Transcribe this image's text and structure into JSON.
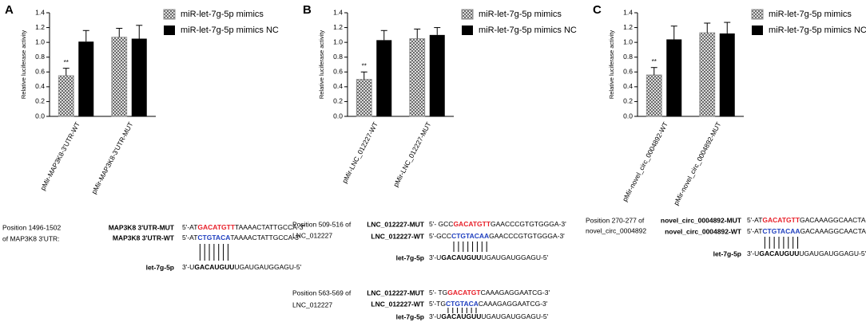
{
  "chart_data": [
    {
      "panel": "A",
      "type": "bar",
      "ylabel": "Relative luciferase activity",
      "categories": [
        "pMir-MAP3K8-3'UTR-WT",
        "pMir-MAP3K8-3'UTR-MUT"
      ],
      "series": [
        {
          "name": "miR-let-7g-5p mimics",
          "color": "#8c8c8c",
          "pattern": "hatch",
          "values": [
            0.55,
            1.07
          ],
          "errors": [
            0.1,
            0.12
          ],
          "annotations": [
            "**",
            null
          ]
        },
        {
          "name": "miR-let-7g-5p mimics NC",
          "color": "#000000",
          "values": [
            1.01,
            1.05
          ],
          "errors": [
            0.15,
            0.18
          ]
        }
      ],
      "ylim": [
        0,
        1.4
      ],
      "yticks": [
        {
          "value": 0,
          "label": "0.0"
        },
        0.2,
        0.4,
        0.6,
        0.8,
        {
          "value": 1,
          "label": "1.0"
        },
        1.2,
        1.4
      ]
    },
    {
      "panel": "B",
      "type": "bar",
      "ylabel": "Relative luciferase activity",
      "categories": [
        "pMir-LNC_012227-WT",
        "pMir-LNC_012227-MUT"
      ],
      "series": [
        {
          "name": "miR-let-7g-5p mimics",
          "color": "#8c8c8c",
          "pattern": "hatch",
          "values": [
            0.5,
            1.05
          ],
          "errors": [
            0.1,
            0.13
          ],
          "annotations": [
            "**",
            null
          ]
        },
        {
          "name": "miR-let-7g-5p mimics NC",
          "color": "#000000",
          "values": [
            1.03,
            1.1
          ],
          "errors": [
            0.13,
            0.1
          ]
        }
      ],
      "ylim": [
        0,
        1.4
      ],
      "yticks": [
        {
          "value": 0,
          "label": "0.0"
        },
        0.2,
        0.4,
        0.6,
        0.8,
        {
          "value": 1,
          "label": "1.0"
        },
        1.2,
        1.4
      ]
    },
    {
      "panel": "C",
      "type": "bar",
      "ylabel": "Relative luciferase activity",
      "categories": [
        "pMir-novel_circ_0004892-WT",
        "pMir-novel_circ_0004892-MUT"
      ],
      "series": [
        {
          "name": "miR-let-7g-5p mimics",
          "color": "#8c8c8c",
          "pattern": "hatch",
          "values": [
            0.56,
            1.13
          ],
          "errors": [
            0.1,
            0.13
          ],
          "annotations": [
            "**",
            null
          ]
        },
        {
          "name": "miR-let-7g-5p mimics NC",
          "color": "#000000",
          "values": [
            1.04,
            1.12
          ],
          "errors": [
            0.18,
            0.15
          ]
        }
      ],
      "ylim": [
        0,
        1.4
      ],
      "yticks": [
        {
          "value": 0,
          "label": "0.0"
        },
        0.2,
        0.4,
        0.6,
        0.8,
        {
          "value": 1,
          "label": "1.0"
        },
        1.2,
        1.4
      ]
    }
  ],
  "sequences": [
    {
      "position": [
        "Position 1496-1502",
        "of MAP3K8 3'UTR:"
      ],
      "rows": [
        {
          "label": "MAP3K8 3'UTR-MUT",
          "parts": [
            "5'-AT",
            "GACATGTT",
            "TAAAACTATTGCCA-3'"
          ],
          "color": "#e8202a"
        },
        {
          "label": "MAP3K8 3'UTR-WT",
          "parts": [
            "5'-AT",
            "CTGTACA",
            "TAAAACTATTGCCA-3'"
          ],
          "color": "#1f3fbf"
        },
        {
          "label": "let-7g-5p",
          "parts": [
            "3'-U",
            "GACAUGUU",
            "UGAUGAUGGAGU-5'"
          ],
          "color": "#000000"
        }
      ]
    },
    {
      "position": [
        "Position 509-516 of",
        "LNC_012227"
      ],
      "rows": [
        {
          "label": "LNC_012227-MUT",
          "parts": [
            "5'- GCC",
            "GACATGTT",
            "GAACCCGTGTGGGA-3'"
          ],
          "color": "#e8202a"
        },
        {
          "label": "LNC_012227-WT",
          "parts": [
            "5'-GCC",
            "CTGTACAA",
            "GAACCCGTGTGGGA-3'"
          ],
          "color": "#1f3fbf"
        },
        {
          "label": "let-7g-5p",
          "parts": [
            "3'-U",
            "GACAUGUU",
            "UGAUGAUGGAGU-5'"
          ],
          "color": "#000000"
        }
      ]
    },
    {
      "position": [
        "Position 563-569 of",
        "LNC_012227"
      ],
      "rows": [
        {
          "label": "LNC_012227-MUT",
          "parts": [
            "5'- TG",
            "GACATGT",
            "CAAAGAGGAATCG-3'"
          ],
          "color": "#e8202a"
        },
        {
          "label": "LNC_012227-WT",
          "parts": [
            "5'-TG",
            "CTGTACA",
            "CAAAGAGGAATCG-3'"
          ],
          "color": "#1f3fbf"
        },
        {
          "label": "let-7g-5p",
          "parts": [
            "3'-U",
            "GACAUGUU",
            "UGAUGAUGGAGU-5'"
          ],
          "color": "#000000"
        }
      ]
    },
    {
      "position": [
        "Position 270-277 of",
        "novel_circ_0004892"
      ],
      "rows": [
        {
          "label": "novel_circ_0004892-MUT",
          "parts": [
            "5'-AT",
            "GACATGTT",
            "GACAAAGGCAACTA-3'"
          ],
          "color": "#e8202a"
        },
        {
          "label": "novel_circ_0004892-WT",
          "parts": [
            "5'-AT",
            "CTGTACAA",
            "GACAAAGGCAACTA-3'"
          ],
          "color": "#1f3fbf"
        },
        {
          "label": "let-7g-5p",
          "parts": [
            "3'-U",
            "GACAUGUU",
            "UGAUGAUGGAGU-5'"
          ],
          "color": "#000000"
        }
      ]
    }
  ]
}
